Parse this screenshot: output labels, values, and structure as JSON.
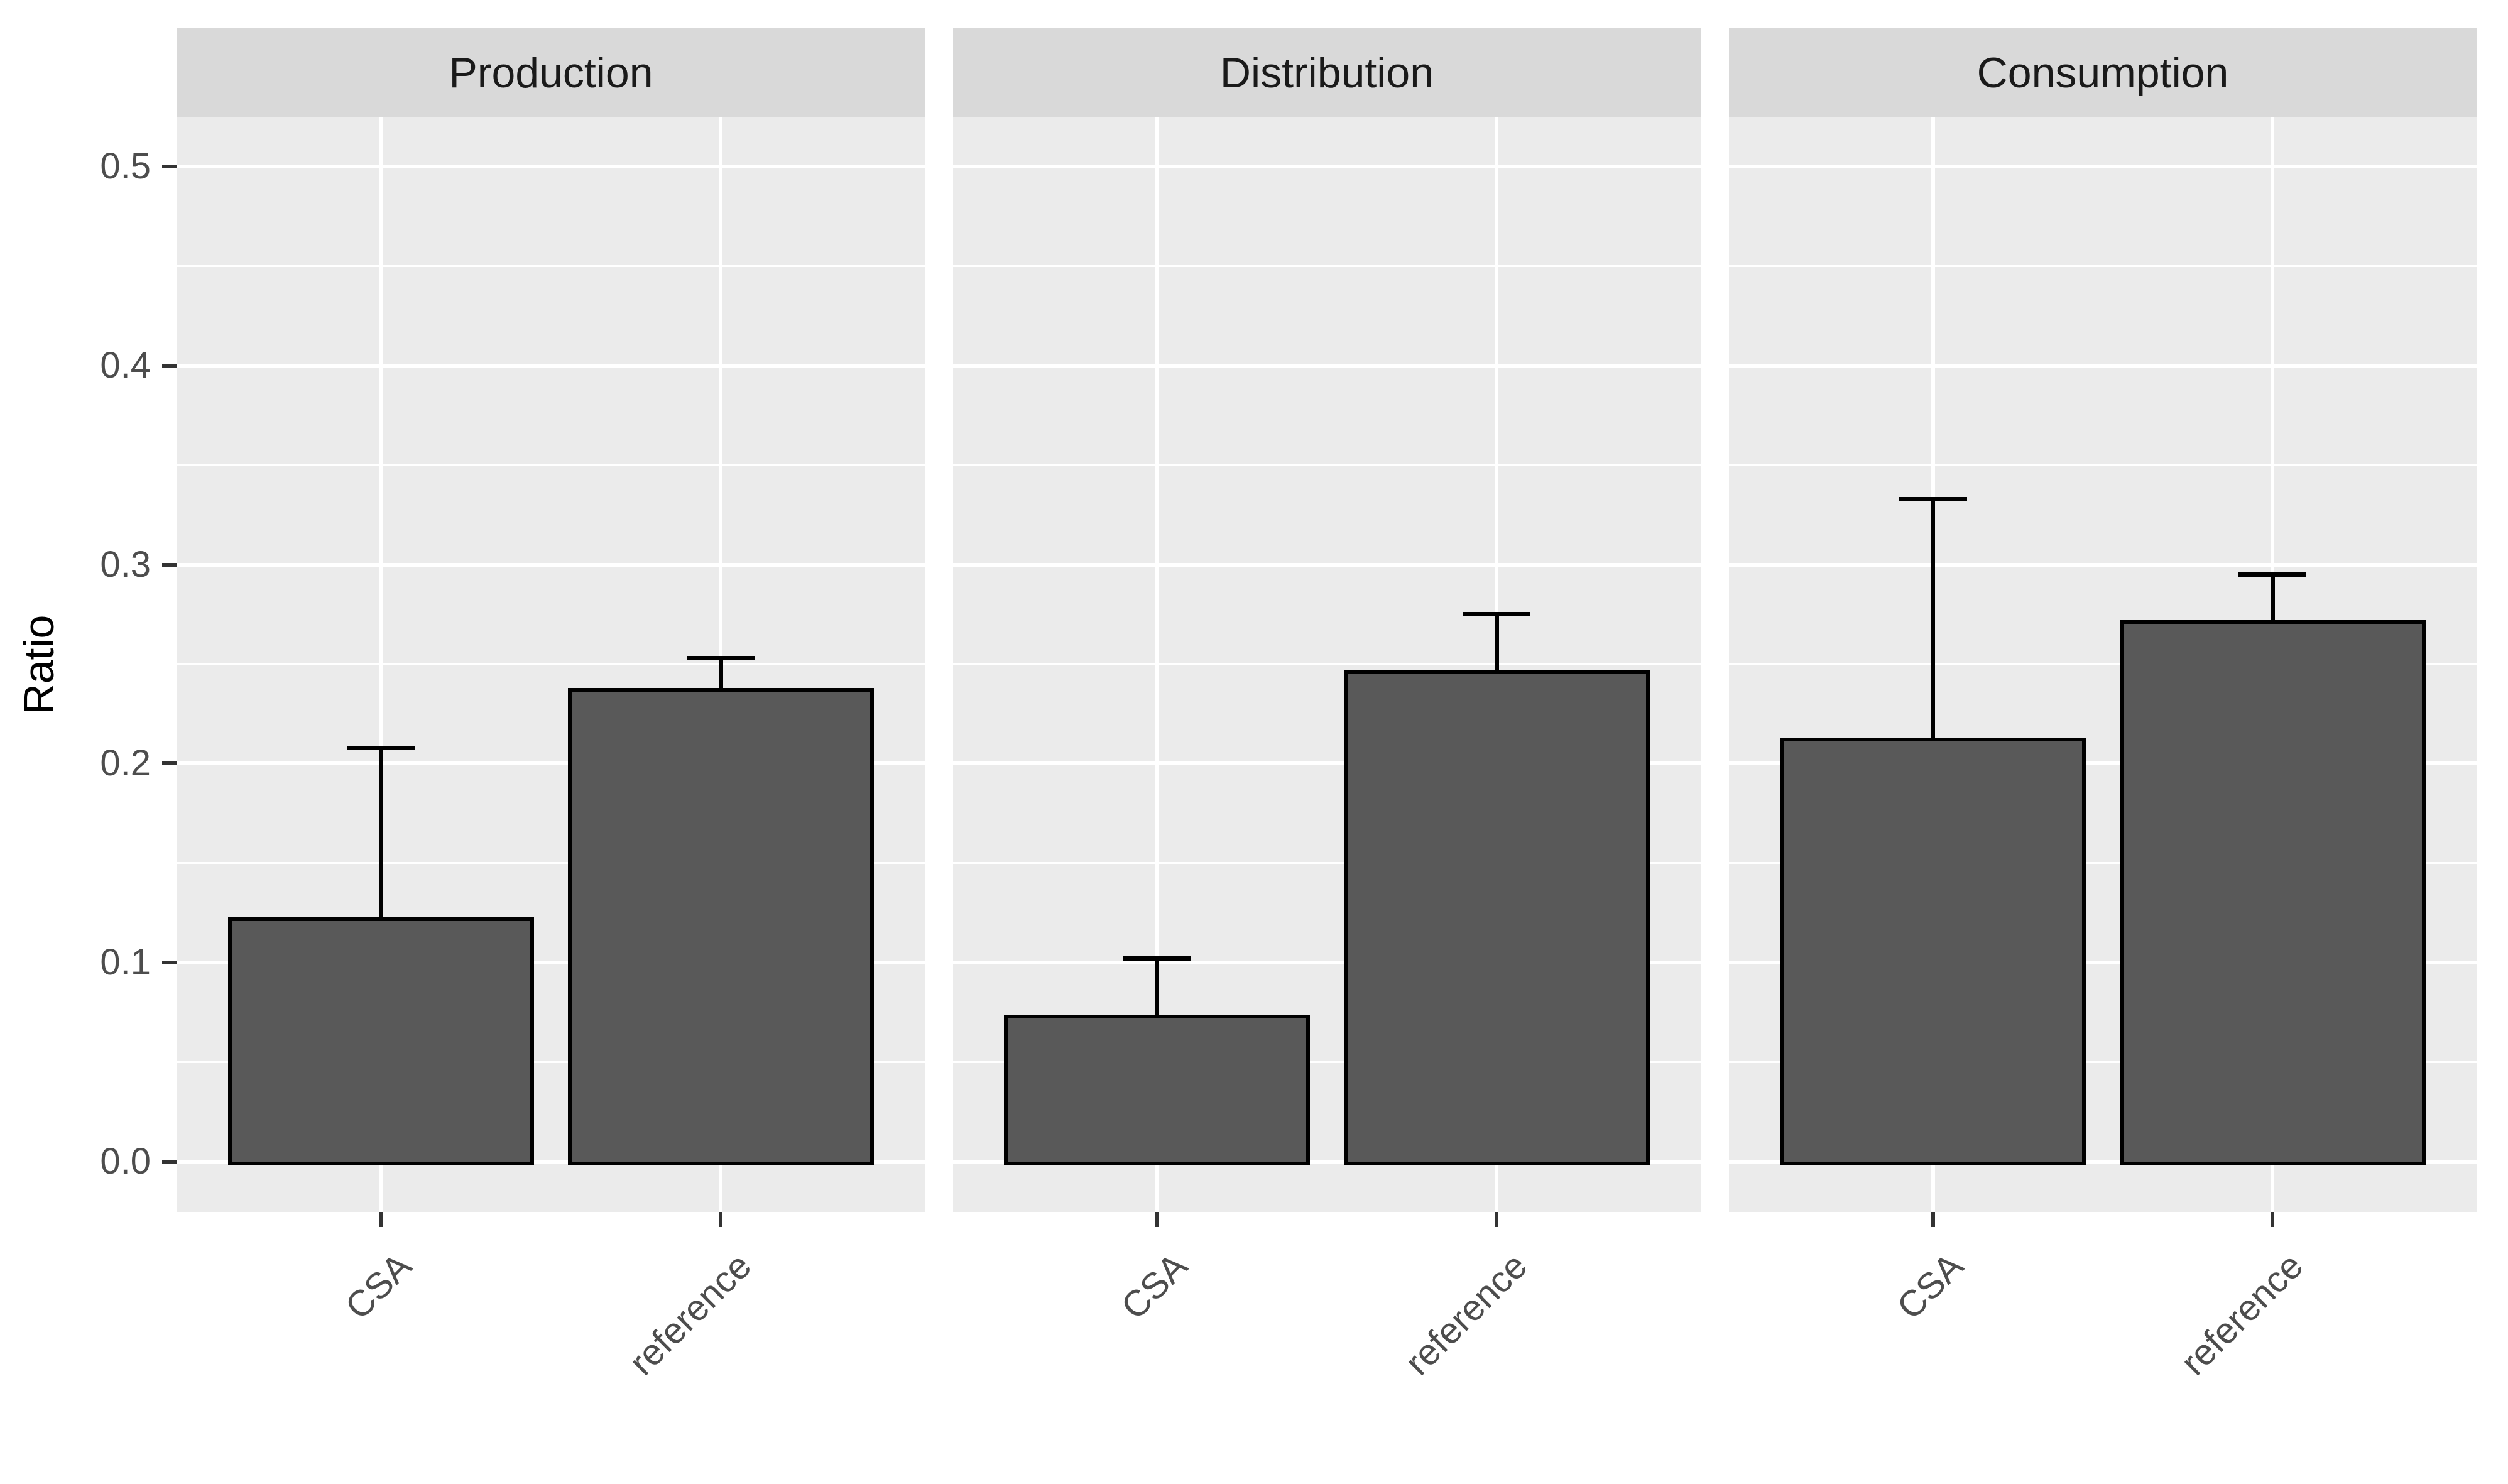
{
  "figure": {
    "y_axis_title": "Ratio",
    "colors": {
      "background": "#FFFFFF",
      "panel_background": "#EBEBEB",
      "strip_background": "#D9D9D9",
      "grid": "#FFFFFF",
      "bar_fill": "#595959",
      "bar_outline": "#000000",
      "error_bar": "#000000",
      "axis_text": "#4D4D4D",
      "strip_text": "#1A1A1A",
      "tick_mark": "#333333"
    }
  },
  "chart_data": {
    "type": "bar",
    "faceted": true,
    "title": "",
    "xlabel": "",
    "ylabel": "Ratio",
    "ylim": [
      0,
      0.5
    ],
    "yticks": [
      "0.0",
      "0.1",
      "0.2",
      "0.3",
      "0.4",
      "0.5"
    ],
    "ytick_values": [
      0.0,
      0.1,
      0.2,
      0.3,
      0.4,
      0.5
    ],
    "minor_tick_values": [
      0.05,
      0.15,
      0.25,
      0.35,
      0.45
    ],
    "grid": true,
    "legend": false,
    "categories": [
      "CSA",
      "reference"
    ],
    "panels": [
      {
        "label": "Production",
        "bars": [
          {
            "category": "CSA",
            "value": 0.122,
            "error_high": 0.208
          },
          {
            "category": "reference",
            "value": 0.237,
            "error_high": 0.253
          }
        ]
      },
      {
        "label": "Distribution",
        "bars": [
          {
            "category": "CSA",
            "value": 0.073,
            "error_high": 0.102
          },
          {
            "category": "reference",
            "value": 0.246,
            "error_high": 0.275
          }
        ]
      },
      {
        "label": "Consumption",
        "bars": [
          {
            "category": "CSA",
            "value": 0.212,
            "error_high": 0.333
          },
          {
            "category": "reference",
            "value": 0.271,
            "error_high": 0.295
          }
        ]
      }
    ]
  }
}
